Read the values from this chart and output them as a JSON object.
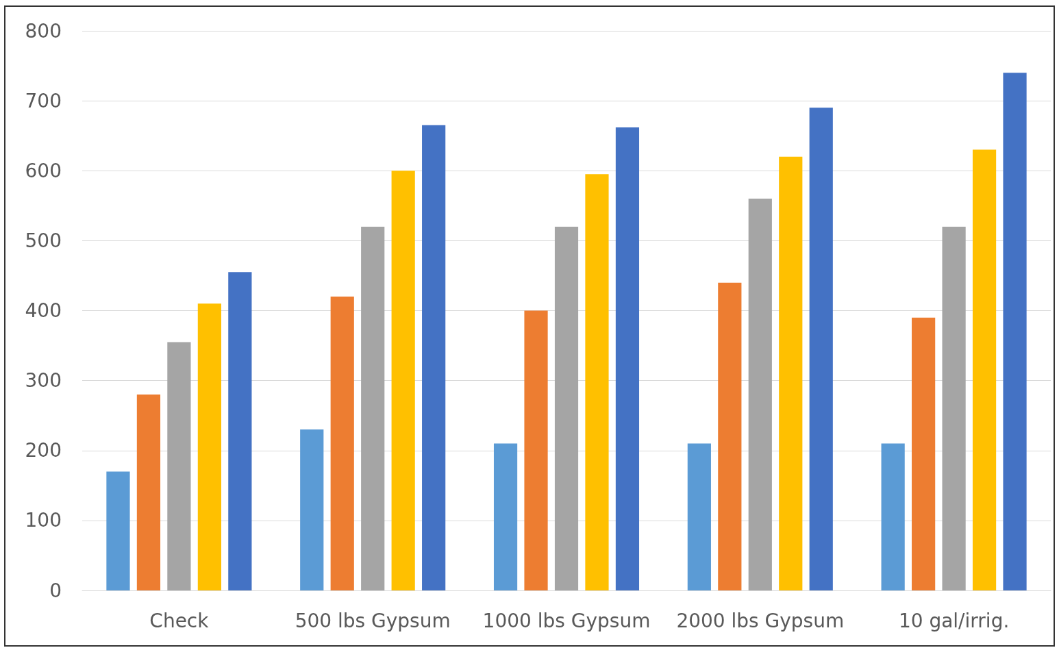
{
  "chart_data": {
    "type": "bar",
    "categories": [
      "Check",
      "500 lbs Gypsum",
      "1000 lbs Gypsum",
      "2000 lbs Gypsum",
      "10 gal/irrig."
    ],
    "series": [
      {
        "color": "#5b9bd5",
        "values": [
          170,
          230,
          210,
          210,
          210
        ]
      },
      {
        "color": "#ed7d31",
        "values": [
          280,
          420,
          400,
          440,
          390
        ]
      },
      {
        "color": "#a5a5a5",
        "values": [
          355,
          520,
          520,
          560,
          520
        ]
      },
      {
        "color": "#ffc000",
        "values": [
          410,
          600,
          595,
          620,
          630
        ]
      },
      {
        "color": "#4472c4",
        "values": [
          455,
          665,
          662,
          690,
          740
        ]
      }
    ],
    "ylim": [
      0,
      800
    ],
    "yticks": [
      0,
      100,
      200,
      300,
      400,
      500,
      600,
      700,
      800
    ],
    "grid": "y"
  }
}
